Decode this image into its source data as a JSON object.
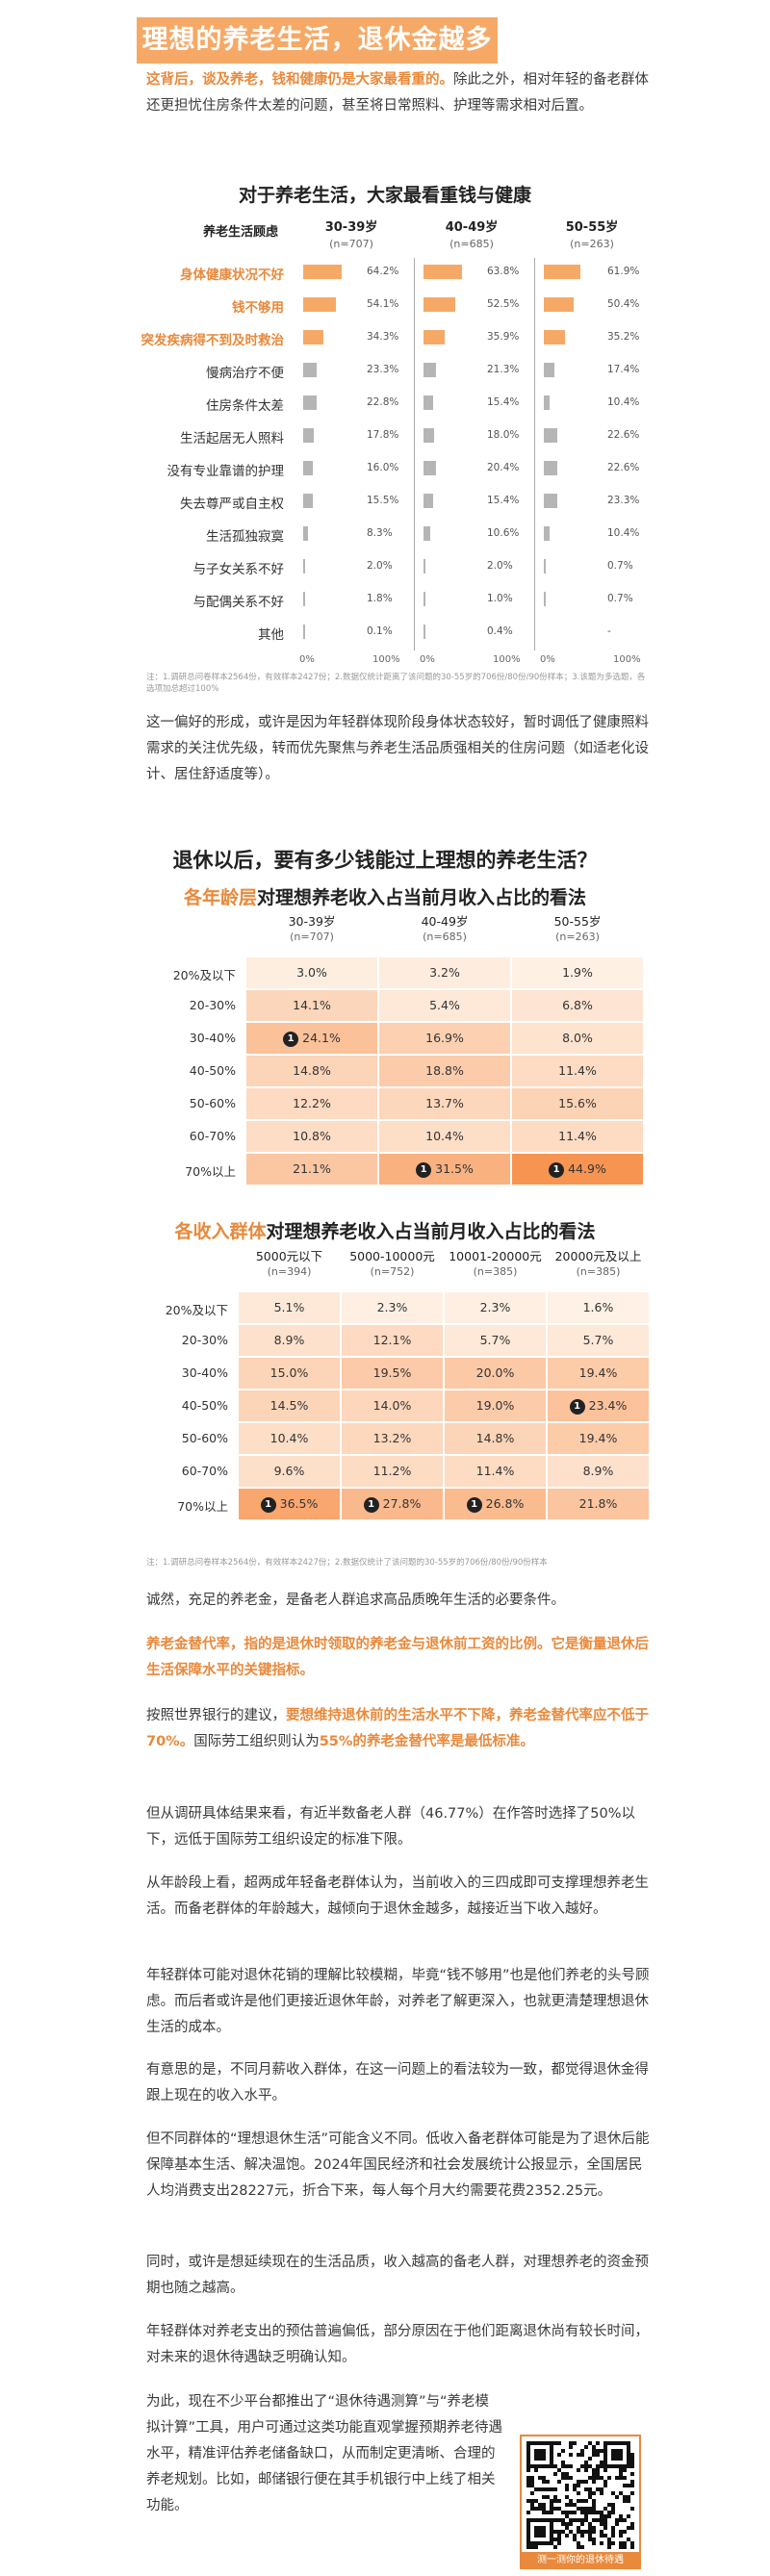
{
  "header": {
    "title": "理想的养老生活，退休金越多越好？"
  },
  "intro": {
    "highlight": "这背后，谈及养老，钱和健康仍是大家最看重的。",
    "rest": "除此之外，相对年轻的备老群体还更担忧住房条件太差的问题，甚至将日常照料、护理等需求相对后置。"
  },
  "chart1": {
    "title": "对于养老生活，大家最看重钱与健康",
    "row_header": "养老生活顾虑",
    "axis_ticks": [
      "0%",
      "100%"
    ],
    "bar_color": "#f6a966",
    "grey_color": "#b5b5b5",
    "note": "注：1.调研总问卷样本2564份，有效样本2427份；2.数据仅统计距离了该问题的30-55岁的706份/80份/90份样本；3.该题为多选题，各选项加总超过100%"
  },
  "chart_data": [
    {
      "type": "bar",
      "title": "对于养老生活，大家最看重钱与健康",
      "categories": [
        "身体健康状况不好",
        "钱不够用",
        "突发疾病得不到及时救治",
        "慢病治疗不便",
        "住房条件太差",
        "生活起居无人照料",
        "没有专业靠谱的护理",
        "失去尊严或自主权",
        "生活孤独寂寞",
        "与子女关系不好",
        "与配偶关系不好",
        "其他"
      ],
      "highlight_count": 3,
      "series": [
        {
          "name": "30-39岁",
          "n": "(n=707)",
          "values": [
            64.2,
            54.1,
            34.3,
            23.3,
            22.8,
            17.8,
            16.0,
            15.5,
            8.3,
            2.0,
            1.8,
            0.1
          ],
          "labels": [
            "64.2%",
            "54.1%",
            "34.3%",
            "23.3%",
            "22.8%",
            "17.8%",
            "16.0%",
            "15.5%",
            "8.3%",
            "2.0%",
            "1.8%",
            "0.1%"
          ]
        },
        {
          "name": "40-49岁",
          "n": "(n=685)",
          "values": [
            63.8,
            52.5,
            35.9,
            21.3,
            15.4,
            18.0,
            20.4,
            15.4,
            10.6,
            2.0,
            1.0,
            0.4
          ],
          "labels": [
            "63.8%",
            "52.5%",
            "35.9%",
            "21.3%",
            "15.4%",
            "18.0%",
            "20.4%",
            "15.4%",
            "10.6%",
            "2.0%",
            "1.0%",
            "0.4%"
          ]
        },
        {
          "name": "50-55岁",
          "n": "(n=263)",
          "values": [
            61.9,
            50.4,
            35.2,
            17.4,
            10.4,
            22.6,
            22.6,
            23.3,
            10.4,
            0.7,
            0.7,
            null
          ],
          "labels": [
            "61.9%",
            "50.4%",
            "35.2%",
            "17.4%",
            "10.4%",
            "22.6%",
            "22.6%",
            "23.3%",
            "10.4%",
            "0.7%",
            "0.7%",
            "-"
          ]
        }
      ],
      "xlim": [
        0,
        100
      ]
    },
    {
      "type": "heatmap",
      "title": "各年龄层对理想养老收入占当前月收入占比的看法",
      "title_accent": "各年龄层",
      "title_rest": "对理想养老收入占当前月收入占比的看法",
      "rows": [
        "20%及以下",
        "20-30%",
        "30-40%",
        "40-50%",
        "50-60%",
        "60-70%",
        "70%以上"
      ],
      "columns": [
        {
          "name": "30-39岁",
          "n": "(n=707)"
        },
        {
          "name": "40-49岁",
          "n": "(n=685)"
        },
        {
          "name": "50-55岁",
          "n": "(n=263)"
        }
      ],
      "values": [
        [
          3.0,
          3.2,
          1.9
        ],
        [
          14.1,
          5.4,
          6.8
        ],
        [
          24.1,
          16.9,
          8.0
        ],
        [
          14.8,
          18.8,
          11.4
        ],
        [
          12.2,
          13.7,
          15.6
        ],
        [
          10.8,
          10.4,
          11.4
        ],
        [
          21.1,
          31.5,
          44.9
        ]
      ],
      "badges": [
        [
          2,
          0
        ],
        [
          6,
          1
        ],
        [
          6,
          2
        ]
      ]
    },
    {
      "type": "heatmap",
      "title": "各收入群体对理想养老收入占当前月收入占比的看法",
      "title_accent": "各收入群体",
      "title_rest": "对理想养老收入占当前月收入占比的看法",
      "rows": [
        "20%及以下",
        "20-30%",
        "30-40%",
        "40-50%",
        "50-60%",
        "60-70%",
        "70%以上"
      ],
      "columns": [
        {
          "name": "5000元以下",
          "n": "(n=394)"
        },
        {
          "name": "5000-10000元",
          "n": "(n=752)"
        },
        {
          "name": "10001-20000元",
          "n": "(n=385)"
        },
        {
          "name": "20000元及以上",
          "n": "(n=385)"
        }
      ],
      "values": [
        [
          5.1,
          2.3,
          2.3,
          1.6
        ],
        [
          8.9,
          12.1,
          5.7,
          5.7
        ],
        [
          15.0,
          19.5,
          20.0,
          19.4
        ],
        [
          14.5,
          14.0,
          19.0,
          23.4
        ],
        [
          10.4,
          13.2,
          14.8,
          19.4
        ],
        [
          9.6,
          11.2,
          11.4,
          8.9
        ],
        [
          36.5,
          27.8,
          26.8,
          21.8
        ]
      ],
      "badges": [
        [
          6,
          0
        ],
        [
          6,
          1
        ],
        [
          6,
          2
        ],
        [
          3,
          3
        ]
      ]
    }
  ],
  "mid_para": "这一偏好的形成，或许是因为年轻群体现阶段身体状态较好，暂时调低了健康照料需求的关注优先级，转而优先聚焦与养老生活品质强相关的住房问题（如适老化设计、居住舒适度等）。",
  "big_question": "退休以后，要有多少钱能过上理想的养老生活？",
  "heat_note": "注：1.调研总问卷样本2564份，有效样本2427份；2.数据仅统计了该问题的30-55岁的706份/80份/90份样本",
  "paras": {
    "p1": "诚然，充足的养老金，是备老人群追求高品质晚年生活的必要条件。",
    "p2": "养老金替代率，指的是退休时领取的养老金与退休前工资的比例。它是衡量退休后生活保障水平的关键指标。",
    "p3_a": "按照世界银行的建议，",
    "p3_b": "要想维持退休前的生活水平不下降，养老金替代率应不低于70%。",
    "p3_c": "国际劳工组织则认为",
    "p3_d": "55%的养老金替代率是最低标准。",
    "p4": "但从调研具体结果来看，有近半数备老人群（46.77%）在作答时选择了50%以下，远低于国际劳工组织设定的标准下限。",
    "p5": "从年龄段上看，超两成年轻备老群体认为，当前收入的三四成即可支撑理想养老生活。而备老群体的年龄越大，越倾向于退休金越多，越接近当下收入越好。",
    "p6": "年轻群体可能对退休花销的理解比较模糊，毕竟“钱不够用”也是他们养老的头号顾虑。而后者或许是他们更接近退休年龄，对养老了解更深入，也就更清楚理想退休生活的成本。",
    "p7": "有意思的是，不同月薪收入群体，在这一问题上的看法较为一致，都觉得退休金得跟上现在的收入水平。",
    "p8": "但不同群体的“理想退休生活”可能含义不同。低收入备老群体可能是为了退休后能保障基本生活、解决温饱。2024年国民经济和社会发展统计公报显示，全国居民人均消费支出28227元，折合下来，每人每个月大约需要花费2352.25元。",
    "p9": "同时，或许是想延续现在的生活品质，收入越高的备老人群，对理想养老的资金预期也随之越高。",
    "p10": "年轻群体对养老支出的预估普遍偏低，部分原因在于他们距离退休尚有较长时间，对未来的退休待遇缺乏明确认知。",
    "p11": "为此，现在不少平台都推出了“退休待遇测算”与“养老模拟计算”工具，用户可通过这类功能直观掌握预期养老待遇水平，精准评估养老储备缺口，从而制定更清晰、合理的养老规划。比如，邮储银行便在其手机银行中上线了相关功能。"
  },
  "qr": {
    "caption": "测一测你的退休待遇",
    "icon": "qr-code-icon"
  }
}
